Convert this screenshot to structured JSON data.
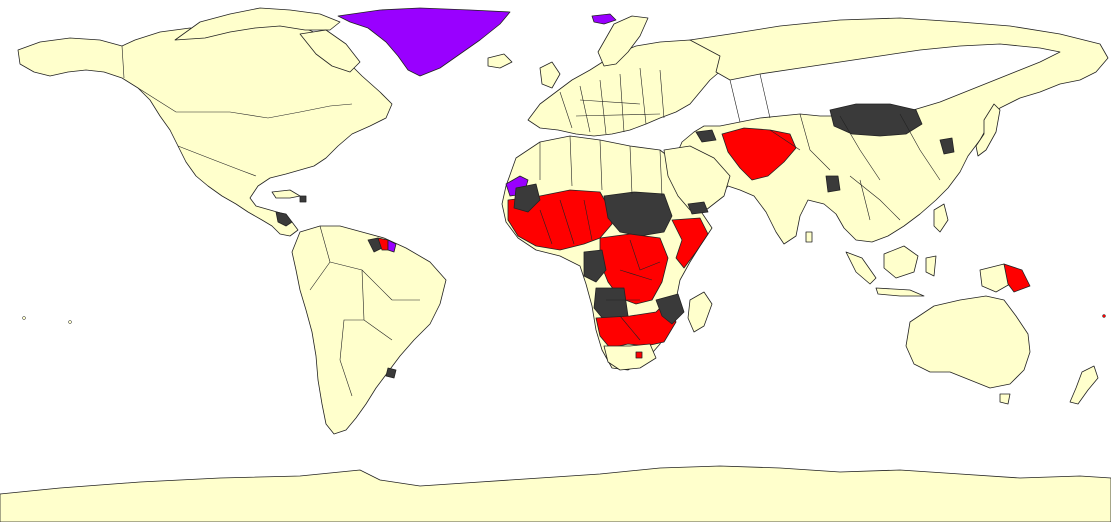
{
  "map": {
    "type": "choropleth-world-map",
    "colors": {
      "ocean": "#ffffff",
      "default_land": "#FFFFCC",
      "red_category": "#FF0000",
      "dark_category": "#3A3A3A",
      "purple_category": "#9900FF",
      "outline": "#222222"
    },
    "legend": null
  }
}
